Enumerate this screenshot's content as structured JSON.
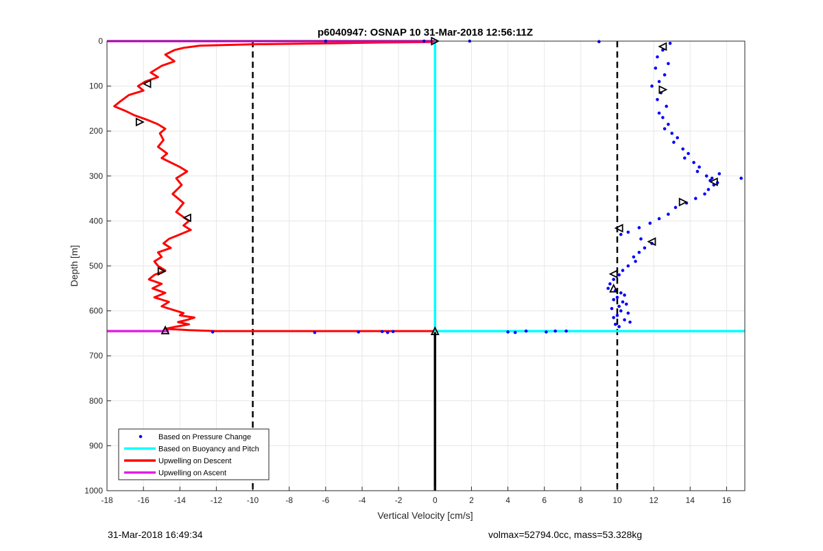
{
  "chart_data": {
    "type": "line",
    "title": "p6040947: OSNAP 10 31-Mar-2018 12:56:11Z",
    "xlabel": "Vertical Velocity [cm/s]",
    "ylabel": "Depth [m]",
    "xlim": [
      -18,
      17
    ],
    "ylim": [
      1000,
      0
    ],
    "y_reversed": true,
    "grid": true,
    "legend_position": "bottom-left",
    "x_ticks": [
      -18,
      -16,
      -14,
      -12,
      -10,
      -8,
      -6,
      -4,
      -2,
      0,
      2,
      4,
      6,
      8,
      10,
      12,
      14,
      16
    ],
    "y_ticks": [
      0,
      100,
      200,
      300,
      400,
      500,
      600,
      700,
      800,
      900,
      1000
    ],
    "reference_lines": [
      {
        "orientation": "vertical",
        "x": -10,
        "style": "dashed",
        "color": "#000000"
      },
      {
        "orientation": "vertical",
        "x": 10,
        "style": "dashed",
        "color": "#000000"
      },
      {
        "orientation": "vertical",
        "x": 0,
        "y_range": [
          645,
          1000
        ],
        "style": "solid",
        "color": "#000000"
      }
    ],
    "series": [
      {
        "name": "Based on Pressure Change",
        "kind": "scatter",
        "color": "#0000ff",
        "x": [
          12.9,
          12.5,
          12.2,
          12.8,
          12.1,
          12.6,
          12.3,
          11.9,
          12.4,
          12.2,
          12.7,
          12.3,
          12.5,
          12.8,
          12.6,
          13.0,
          13.3,
          13.1,
          13.6,
          13.9,
          13.7,
          14.2,
          14.5,
          14.4,
          14.9,
          15.1,
          15.3,
          15.0,
          15.5,
          15.2,
          15.6,
          16.8,
          14.8,
          14.3,
          13.8,
          13.2,
          12.8,
          12.3,
          11.8,
          11.2,
          10.6,
          10.2,
          11.3,
          11.9,
          11.5,
          11.2,
          10.9,
          11.0,
          10.6,
          10.3,
          10.1,
          9.8,
          9.6,
          9.5,
          9.9,
          10.2,
          10.4,
          10.0,
          9.8,
          10.3,
          10.5,
          10.1,
          9.7,
          10.2,
          10.6,
          10.0,
          9.8,
          10.4,
          10.7,
          9.9,
          10.1,
          7.2,
          6.6,
          6.1,
          5.0,
          4.4,
          4.0,
          -2.6,
          -2.9,
          -2.3,
          -4.2,
          -6.6,
          -12.2,
          1.9,
          9.0,
          -0.6,
          -6.0
        ],
        "y": [
          5,
          20,
          35,
          50,
          60,
          75,
          90,
          100,
          115,
          130,
          145,
          160,
          170,
          185,
          195,
          205,
          215,
          225,
          240,
          250,
          260,
          270,
          280,
          290,
          300,
          310,
          320,
          330,
          315,
          305,
          295,
          305,
          340,
          350,
          360,
          370,
          385,
          395,
          405,
          415,
          425,
          430,
          440,
          450,
          460,
          470,
          480,
          490,
          500,
          510,
          520,
          530,
          540,
          550,
          555,
          560,
          565,
          570,
          575,
          580,
          585,
          590,
          595,
          600,
          605,
          610,
          615,
          620,
          625,
          630,
          635,
          645,
          645,
          647,
          645,
          648,
          647,
          648,
          646,
          646,
          647,
          648,
          647,
          0,
          1,
          0,
          0
        ]
      },
      {
        "name": "Based on Buoyancy and Pitch",
        "kind": "line",
        "color": "#00ffff",
        "x": [
          0,
          0,
          17
        ],
        "y": [
          0,
          645,
          645
        ]
      },
      {
        "name": "Upwelling on Descent",
        "kind": "line",
        "color": "#ff0000",
        "x": [
          0,
          -3,
          -6,
          -10,
          -12.9,
          -13.8,
          -14.3,
          -14.8,
          -14.3,
          -15.0,
          -15.6,
          -15.2,
          -15.9,
          -16.3,
          -16.0,
          -16.8,
          -17.3,
          -17.6,
          -17.0,
          -16.5,
          -15.8,
          -15.2,
          -14.8,
          -15.1,
          -14.9,
          -15.2,
          -14.7,
          -15.0,
          -14.5,
          -14.0,
          -13.6,
          -14.2,
          -13.9,
          -14.4,
          -13.8,
          -14.2,
          -13.5,
          -13.8,
          -13.4,
          -14.0,
          -14.6,
          -14.9,
          -14.5,
          -15.2,
          -15.0,
          -15.4,
          -15.2,
          -14.8,
          -15.4,
          -15.7,
          -15.0,
          -15.5,
          -14.8,
          -15.4,
          -14.6,
          -15.0,
          -14.2,
          -13.8,
          -14.0,
          -13.2,
          -13.6,
          -14.1,
          -13.5,
          -14.2,
          -14.8,
          -13.5,
          -12.0,
          -10.0,
          -6.0,
          -2.5,
          0
        ],
        "y": [
          2,
          3,
          5,
          7,
          10,
          15,
          20,
          30,
          45,
          55,
          70,
          80,
          90,
          100,
          110,
          120,
          135,
          145,
          155,
          165,
          175,
          185,
          195,
          205,
          220,
          235,
          250,
          260,
          270,
          280,
          290,
          305,
          320,
          340,
          360,
          380,
          400,
          410,
          420,
          430,
          440,
          450,
          460,
          470,
          480,
          490,
          500,
          510,
          520,
          530,
          540,
          550,
          560,
          570,
          580,
          590,
          600,
          605,
          610,
          615,
          620,
          625,
          630,
          635,
          640,
          643,
          645,
          645,
          645,
          645,
          645
        ]
      },
      {
        "name": "Upwelling on Ascent",
        "kind": "line",
        "color": "#e020e0",
        "x": [
          -18,
          0
        ],
        "y": [
          0,
          0
        ],
        "x2": [
          -18,
          -14.6
        ],
        "y2": [
          645,
          645
        ]
      }
    ],
    "markers": [
      {
        "x": 12.5,
        "y": 12,
        "shape": "triangle-left"
      },
      {
        "x": 12.5,
        "y": 108,
        "shape": "triangle-right"
      },
      {
        "x": 15.3,
        "y": 313,
        "shape": "triangle-left"
      },
      {
        "x": 13.6,
        "y": 358,
        "shape": "triangle-right"
      },
      {
        "x": 10.1,
        "y": 416,
        "shape": "triangle-left"
      },
      {
        "x": 11.9,
        "y": 446,
        "shape": "triangle-left"
      },
      {
        "x": 9.8,
        "y": 518,
        "shape": "triangle-left"
      },
      {
        "x": 9.8,
        "y": 550,
        "shape": "triangle-up"
      },
      {
        "x": -15.8,
        "y": 95,
        "shape": "triangle-left"
      },
      {
        "x": -16.2,
        "y": 180,
        "shape": "triangle-right"
      },
      {
        "x": -13.6,
        "y": 393,
        "shape": "triangle-left"
      },
      {
        "x": -15.0,
        "y": 512,
        "shape": "triangle-right"
      },
      {
        "x": -14.8,
        "y": 643,
        "shape": "triangle-up"
      },
      {
        "x": 0,
        "y": 645,
        "shape": "triangle-up"
      },
      {
        "x": 0,
        "y": 0,
        "shape": "triangle-right"
      }
    ]
  },
  "footer": {
    "timestamp": "31-Mar-2018 16:49:34",
    "stats": "volmax=52794.0cc, mass=53.328kg"
  }
}
